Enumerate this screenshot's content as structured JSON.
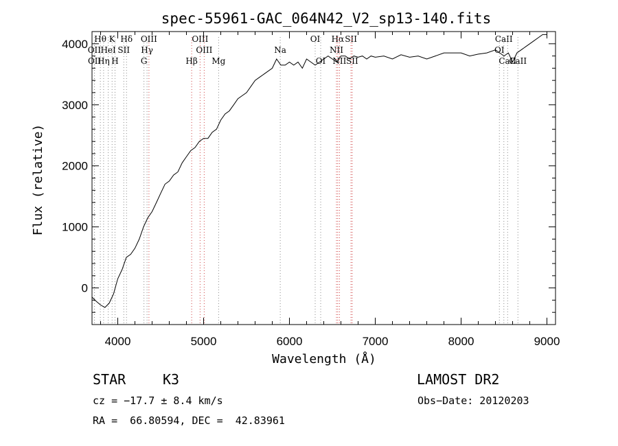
{
  "chart_data": {
    "type": "line",
    "title": "spec-55961-GAC_064N42_V2_sp13-140.fits",
    "xlabel": "Wavelength (Å)",
    "ylabel": "Flux (relative)",
    "xlim": [
      3700,
      9100
    ],
    "ylim": [
      -600,
      4200
    ],
    "x_ticks": [
      4000,
      5000,
      6000,
      7000,
      8000,
      9000
    ],
    "y_ticks": [
      0,
      1000,
      2000,
      3000,
      4000
    ],
    "grid": false,
    "series": [
      {
        "x": [
          3700,
          3750,
          3800,
          3850,
          3900,
          3950,
          4000,
          4050,
          4100,
          4150,
          4200,
          4250,
          4300,
          4350,
          4400,
          4450,
          4500,
          4550,
          4600,
          4650,
          4700,
          4750,
          4800,
          4850,
          4900,
          4950,
          5000,
          5050,
          5100,
          5150,
          5200,
          5250,
          5300,
          5350,
          5400,
          5450,
          5500,
          5550,
          5600,
          5650,
          5700,
          5750,
          5800,
          5850,
          5900,
          5950,
          6000,
          6050,
          6100,
          6150,
          6200,
          6250,
          6300,
          6350,
          6400,
          6450,
          6500,
          6550,
          6600,
          6650,
          6700,
          6750,
          6800,
          6850,
          6900,
          6950,
          7000,
          7100,
          7200,
          7300,
          7400,
          7500,
          7600,
          7700,
          7800,
          7900,
          8000,
          8100,
          8200,
          8300,
          8400,
          8450,
          8500,
          8550,
          8600,
          8650,
          8700,
          8750,
          8800,
          8850,
          8900,
          8950,
          9000
        ],
        "y": [
          -150,
          -220,
          -280,
          -320,
          -250,
          -100,
          150,
          300,
          500,
          550,
          650,
          800,
          1000,
          1150,
          1250,
          1400,
          1550,
          1700,
          1750,
          1850,
          1900,
          2050,
          2150,
          2250,
          2300,
          2400,
          2450,
          2450,
          2550,
          2600,
          2750,
          2850,
          2900,
          3000,
          3100,
          3150,
          3200,
          3300,
          3400,
          3450,
          3500,
          3550,
          3600,
          3750,
          3650,
          3650,
          3700,
          3650,
          3700,
          3600,
          3750,
          3700,
          3650,
          3700,
          3750,
          3800,
          3750,
          3700,
          3800,
          3800,
          3750,
          3800,
          3780,
          3800,
          3750,
          3800,
          3780,
          3800,
          3750,
          3820,
          3780,
          3800,
          3750,
          3800,
          3850,
          3850,
          3850,
          3800,
          3830,
          3850,
          3900,
          3850,
          3800,
          3850,
          3700,
          3850,
          3900,
          3950,
          4000,
          4050,
          4100,
          4150,
          4150
        ]
      }
    ],
    "spectral_lines": [
      {
        "label": "Hθ",
        "x": 3797,
        "row": 0,
        "color": "#888888"
      },
      {
        "label": "K",
        "x": 3934,
        "row": 0,
        "color": "#888888"
      },
      {
        "label": "Hδ",
        "x": 4102,
        "row": 0,
        "color": "#888888"
      },
      {
        "label": "OIII",
        "x": 4363,
        "row": 0,
        "color": "#d04040"
      },
      {
        "label": "OIII",
        "x": 4959,
        "row": 0,
        "color": "#d04040"
      },
      {
        "label": "OI",
        "x": 6300,
        "row": 0,
        "color": "#888888"
      },
      {
        "label": "Hα",
        "x": 6563,
        "row": 0,
        "color": "#d04040"
      },
      {
        "label": "SII",
        "x": 6717,
        "row": 0,
        "color": "#d04040"
      },
      {
        "label": "CaII",
        "x": 8498,
        "row": 0,
        "color": "#888888"
      },
      {
        "label": "OII",
        "x": 3727,
        "row": 1,
        "color": "#888888"
      },
      {
        "label": "HeI",
        "x": 3889,
        "row": 1,
        "color": "#888888"
      },
      {
        "label": "SII",
        "x": 4070,
        "row": 1,
        "color": "#888888"
      },
      {
        "label": "Hγ",
        "x": 4341,
        "row": 1,
        "color": "#888888"
      },
      {
        "label": "OIII",
        "x": 5007,
        "row": 1,
        "color": "#d04040"
      },
      {
        "label": "Na",
        "x": 5893,
        "row": 1,
        "color": "#888888"
      },
      {
        "label": "NII",
        "x": 6548,
        "row": 1,
        "color": "#d04040"
      },
      {
        "label": "OI",
        "x": 8446,
        "row": 1,
        "color": "#888888"
      },
      {
        "label": "OII",
        "x": 3729,
        "row": 2,
        "color": "#888888"
      },
      {
        "label": "Hη",
        "x": 3835,
        "row": 2,
        "color": "#888888"
      },
      {
        "label": "H",
        "x": 3968,
        "row": 2,
        "color": "#888888"
      },
      {
        "label": "G",
        "x": 4305,
        "row": 2,
        "color": "#888888"
      },
      {
        "label": "Hβ",
        "x": 4861,
        "row": 2,
        "color": "#d04040"
      },
      {
        "label": "Mg",
        "x": 5175,
        "row": 2,
        "color": "#888888"
      },
      {
        "label": "OI",
        "x": 6364,
        "row": 2,
        "color": "#888888"
      },
      {
        "label": "NII",
        "x": 6583,
        "row": 2,
        "color": "#d04040"
      },
      {
        "label": "SII",
        "x": 6731,
        "row": 2,
        "color": "#d04040"
      },
      {
        "label": "CaII",
        "x": 8542,
        "row": 2,
        "color": "#888888"
      },
      {
        "label": "CaII",
        "x": 8662,
        "row": 2,
        "color": "#888888"
      }
    ]
  },
  "info": {
    "class_label": "STAR",
    "subclass": "K3",
    "survey": "LAMOST DR2",
    "cz": "cz = −17.7 ± 8.4 km/s",
    "obs_date": "Obs−Date: 20120203",
    "ra_dec": "RA =  66.80594, DEC =  42.83961"
  }
}
